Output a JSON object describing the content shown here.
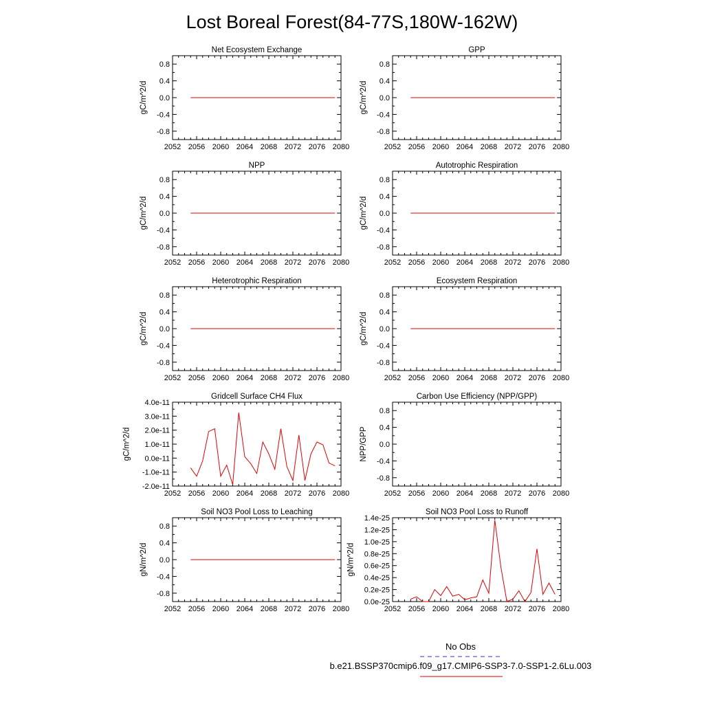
{
  "figure": {
    "title": "Lost Boreal Forest(84-77S,180W-162W)"
  },
  "legend": {
    "entries": [
      {
        "label": "No Obs",
        "color": "#3030c8",
        "style": "dashed"
      },
      {
        "label": "b.e21.BSSP370cmip6.f09_g17.CMIP6-SSP3-7.0-SSP1-2.6Lu.003",
        "color": "#e00000",
        "style": "solid"
      }
    ]
  },
  "chart_data": [
    {
      "type": "line",
      "title": "Net Ecosystem Exchange",
      "xlabel": "",
      "ylabel": "gC/m^2/d",
      "xlim": [
        2052,
        2080
      ],
      "ylim": [
        -1.0,
        1.0
      ],
      "xticks": [
        "2052",
        "2056",
        "2060",
        "2064",
        "2068",
        "2072",
        "2076",
        "2080"
      ],
      "yticks": [
        {
          "v": 0.8,
          "label": "0.8"
        },
        {
          "v": 0.4,
          "label": "0.4"
        },
        {
          "v": 0.0,
          "label": "0.0"
        },
        {
          "v": -0.4,
          "label": "-0.4"
        },
        {
          "v": -0.8,
          "label": "-0.8"
        }
      ],
      "series": [
        {
          "color": "#e00000",
          "x": [
            2055,
            2079
          ],
          "y": [
            0,
            0
          ]
        }
      ]
    },
    {
      "type": "line",
      "title": "GPP",
      "xlabel": "",
      "ylabel": "gC/m^2/d",
      "xlim": [
        2052,
        2080
      ],
      "ylim": [
        -1.0,
        1.0
      ],
      "xticks": [
        "2052",
        "2056",
        "2060",
        "2064",
        "2068",
        "2072",
        "2076",
        "2080"
      ],
      "yticks": [
        {
          "v": 0.8,
          "label": "0.8"
        },
        {
          "v": 0.4,
          "label": "0.4"
        },
        {
          "v": 0.0,
          "label": "0.0"
        },
        {
          "v": -0.4,
          "label": "-0.4"
        },
        {
          "v": -0.8,
          "label": "-0.8"
        }
      ],
      "series": [
        {
          "color": "#e00000",
          "x": [
            2055,
            2079
          ],
          "y": [
            0,
            0
          ]
        }
      ]
    },
    {
      "type": "line",
      "title": "NPP",
      "xlabel": "",
      "ylabel": "gC/m^2/d",
      "xlim": [
        2052,
        2080
      ],
      "ylim": [
        -1.0,
        1.0
      ],
      "xticks": [
        "2052",
        "2056",
        "2060",
        "2064",
        "2068",
        "2072",
        "2076",
        "2080"
      ],
      "yticks": [
        {
          "v": 0.8,
          "label": "0.8"
        },
        {
          "v": 0.4,
          "label": "0.4"
        },
        {
          "v": 0.0,
          "label": "0.0"
        },
        {
          "v": -0.4,
          "label": "-0.4"
        },
        {
          "v": -0.8,
          "label": "-0.8"
        }
      ],
      "series": [
        {
          "color": "#e00000",
          "x": [
            2055,
            2079
          ],
          "y": [
            0,
            0
          ]
        }
      ]
    },
    {
      "type": "line",
      "title": "Autotrophic Respiration",
      "xlabel": "",
      "ylabel": "gC/m^2/d",
      "xlim": [
        2052,
        2080
      ],
      "ylim": [
        -1.0,
        1.0
      ],
      "xticks": [
        "2052",
        "2056",
        "2060",
        "2064",
        "2068",
        "2072",
        "2076",
        "2080"
      ],
      "yticks": [
        {
          "v": 0.8,
          "label": "0.8"
        },
        {
          "v": 0.4,
          "label": "0.4"
        },
        {
          "v": 0.0,
          "label": "0.0"
        },
        {
          "v": -0.4,
          "label": "-0.4"
        },
        {
          "v": -0.8,
          "label": "-0.8"
        }
      ],
      "series": [
        {
          "color": "#e00000",
          "x": [
            2055,
            2079
          ],
          "y": [
            0,
            0
          ]
        }
      ]
    },
    {
      "type": "line",
      "title": "Heterotrophic Respiration",
      "xlabel": "",
      "ylabel": "gC/m^2/d",
      "xlim": [
        2052,
        2080
      ],
      "ylim": [
        -1.0,
        1.0
      ],
      "xticks": [
        "2052",
        "2056",
        "2060",
        "2064",
        "2068",
        "2072",
        "2076",
        "2080"
      ],
      "yticks": [
        {
          "v": 0.8,
          "label": "0.8"
        },
        {
          "v": 0.4,
          "label": "0.4"
        },
        {
          "v": 0.0,
          "label": "0.0"
        },
        {
          "v": -0.4,
          "label": "-0.4"
        },
        {
          "v": -0.8,
          "label": "-0.8"
        }
      ],
      "series": [
        {
          "color": "#e00000",
          "x": [
            2055,
            2079
          ],
          "y": [
            0,
            0
          ]
        }
      ]
    },
    {
      "type": "line",
      "title": "Ecosystem Respiration",
      "xlabel": "",
      "ylabel": "gC/m^2/d",
      "xlim": [
        2052,
        2080
      ],
      "ylim": [
        -1.0,
        1.0
      ],
      "xticks": [
        "2052",
        "2056",
        "2060",
        "2064",
        "2068",
        "2072",
        "2076",
        "2080"
      ],
      "yticks": [
        {
          "v": 0.8,
          "label": "0.8"
        },
        {
          "v": 0.4,
          "label": "0.4"
        },
        {
          "v": 0.0,
          "label": "0.0"
        },
        {
          "v": -0.4,
          "label": "-0.4"
        },
        {
          "v": -0.8,
          "label": "-0.8"
        }
      ],
      "series": [
        {
          "color": "#e00000",
          "x": [
            2055,
            2079
          ],
          "y": [
            0,
            0
          ]
        }
      ]
    },
    {
      "type": "line",
      "title": "Gridcell Surface CH4 Flux",
      "xlabel": "",
      "ylabel": "gC/m^2/d",
      "xlim": [
        2052,
        2080
      ],
      "ylim": [
        -2e-11,
        4e-11
      ],
      "xticks": [
        "2052",
        "2056",
        "2060",
        "2064",
        "2068",
        "2072",
        "2076",
        "2080"
      ],
      "yticks": [
        {
          "v": 4e-11,
          "label": "4.0e-11"
        },
        {
          "v": 3e-11,
          "label": "3.0e-11"
        },
        {
          "v": 2e-11,
          "label": "2.0e-11"
        },
        {
          "v": 1e-11,
          "label": "1.0e-11"
        },
        {
          "v": 0,
          "label": "0.0e-11"
        },
        {
          "v": -1e-11,
          "label": "-1.0e-11"
        },
        {
          "v": -2e-11,
          "label": "-2.0e-11"
        }
      ],
      "series": [
        {
          "color": "#e00000",
          "x": [
            2055,
            2056,
            2057,
            2058,
            2059,
            2060,
            2061,
            2062,
            2063,
            2064,
            2065,
            2066,
            2067,
            2068,
            2069,
            2070,
            2071,
            2072,
            2073,
            2074,
            2075,
            2076,
            2077,
            2078,
            2079
          ],
          "y": [
            -7e-12,
            -1.3e-11,
            -2e-12,
            1.9e-11,
            2.1e-11,
            -1.3e-11,
            -5e-12,
            -1.9e-11,
            3.25e-11,
            1e-12,
            -4e-12,
            -1.1e-11,
            1.15e-11,
            3e-12,
            -8e-12,
            2.1e-11,
            -6e-12,
            -1.6e-11,
            1.65e-11,
            -1.6e-11,
            3e-12,
            1.15e-11,
            9.5e-12,
            -3.5e-12,
            -5.5e-12
          ]
        }
      ]
    },
    {
      "type": "line",
      "title": "Carbon Use Efficiency (NPP/GPP)",
      "xlabel": "",
      "ylabel": "NPP/GPP",
      "xlim": [
        2052,
        2080
      ],
      "ylim": [
        -1.0,
        1.0
      ],
      "xticks": [
        "2052",
        "2056",
        "2060",
        "2064",
        "2068",
        "2072",
        "2076",
        "2080"
      ],
      "yticks": [
        {
          "v": 0.8,
          "label": "0.8"
        },
        {
          "v": 0.4,
          "label": "0.4"
        },
        {
          "v": 0.0,
          "label": "0.0"
        },
        {
          "v": -0.4,
          "label": "-0.4"
        },
        {
          "v": -0.8,
          "label": "-0.8"
        }
      ],
      "series": []
    },
    {
      "type": "line",
      "title": "Soil NO3 Pool Loss to Leaching",
      "xlabel": "",
      "ylabel": "gN/m^2/d",
      "xlim": [
        2052,
        2080
      ],
      "ylim": [
        -1.0,
        1.0
      ],
      "xticks": [
        "2052",
        "2056",
        "2060",
        "2064",
        "2068",
        "2072",
        "2076",
        "2080"
      ],
      "yticks": [
        {
          "v": 0.8,
          "label": "0.8"
        },
        {
          "v": 0.4,
          "label": "0.4"
        },
        {
          "v": 0.0,
          "label": "0.0"
        },
        {
          "v": -0.4,
          "label": "-0.4"
        },
        {
          "v": -0.8,
          "label": "-0.8"
        }
      ],
      "series": [
        {
          "color": "#e00000",
          "x": [
            2055,
            2079
          ],
          "y": [
            0,
            0
          ]
        }
      ]
    },
    {
      "type": "line",
      "title": "Soil NO3 Pool Loss to Runoff",
      "xlabel": "",
      "ylabel": "gN/m^2/d",
      "xlim": [
        2052,
        2080
      ],
      "ylim": [
        0,
        1.4e-25
      ],
      "xticks": [
        "2052",
        "2056",
        "2060",
        "2064",
        "2068",
        "2072",
        "2076",
        "2080"
      ],
      "yticks": [
        {
          "v": 1.4e-25,
          "label": "1.4e-25"
        },
        {
          "v": 1.2e-25,
          "label": "1.2e-25"
        },
        {
          "v": 1e-25,
          "label": "1.0e-25"
        },
        {
          "v": 8e-26,
          "label": "0.8e-25"
        },
        {
          "v": 6e-26,
          "label": "0.6e-25"
        },
        {
          "v": 4e-26,
          "label": "0.4e-25"
        },
        {
          "v": 2e-26,
          "label": "0.2e-25"
        },
        {
          "v": 0,
          "label": "0.0e-25"
        }
      ],
      "series": [
        {
          "color": "#e00000",
          "x": [
            2055,
            2056,
            2057,
            2058,
            2059,
            2060,
            2061,
            2062,
            2063,
            2064,
            2065,
            2066,
            2067,
            2068,
            2069,
            2070,
            2071,
            2072,
            2073,
            2074,
            2075,
            2076,
            2077,
            2078,
            2079
          ],
          "y": [
            4e-27,
            8e-27,
            0.0,
            0.0,
            2e-26,
            1e-26,
            2.5e-26,
            9e-27,
            1.2e-26,
            3e-27,
            6e-27,
            8e-27,
            3.6e-26,
            1.4e-26,
            1.36e-25,
            5.8e-26,
            0.0,
            4e-27,
            1.8e-26,
            0.0,
            1.5e-26,
            8.8e-26,
            1.2e-26,
            3.1e-26,
            1.2e-26
          ]
        }
      ]
    }
  ]
}
